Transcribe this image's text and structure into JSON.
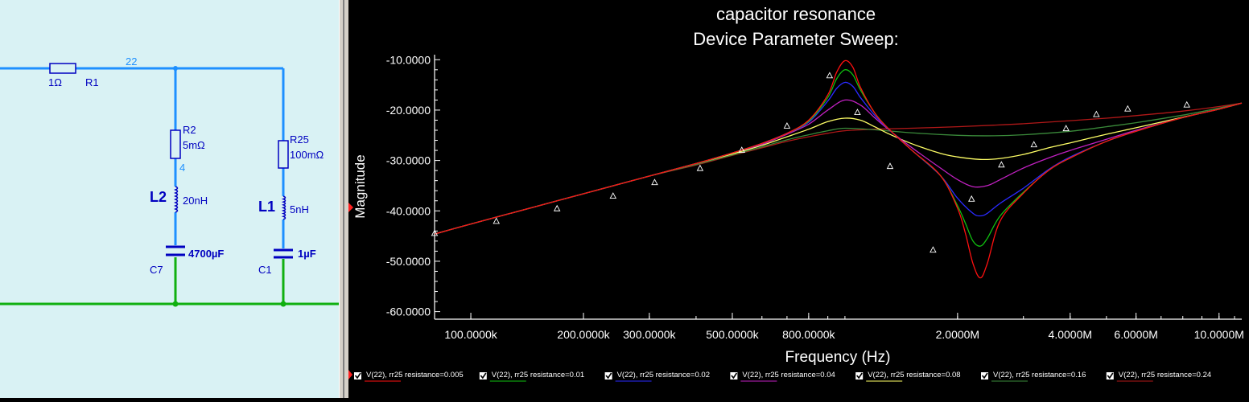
{
  "schematic": {
    "components": {
      "r1": {
        "value": "1Ω",
        "ref": "R1"
      },
      "r2": {
        "ref": "R2",
        "value": "5mΩ"
      },
      "r25": {
        "ref": "R25",
        "value": "100mΩ"
      },
      "l2": {
        "ref": "L2",
        "value": "20nH"
      },
      "l1": {
        "ref": "L1",
        "value": "5nH"
      },
      "c7": {
        "ref": "C7",
        "value": "4700µF"
      },
      "c1": {
        "ref": "C1",
        "value": "1µF"
      }
    },
    "nets": {
      "n22": "22",
      "n4": "4"
    },
    "colors": {
      "wire": "#1e90ff",
      "ground": "#10b010",
      "component": "#0000c0",
      "net_label": "#1e90ff",
      "background": "#d9f2f4"
    }
  },
  "chart_data": {
    "type": "line",
    "title": "capacitor resonance",
    "subtitle": "Device Parameter Sweep:",
    "xlabel": "Frequency (Hz)",
    "ylabel": "Magnitude",
    "x_scale": "log",
    "xlim": [
      80000,
      11500000
    ],
    "ylim": [
      -61.5,
      -9.0
    ],
    "x_ticks": [
      {
        "value": 100000,
        "label": "100.0000k"
      },
      {
        "value": 200000,
        "label": "200.0000k"
      },
      {
        "value": 300000,
        "label": "300.0000k"
      },
      {
        "value": 500000,
        "label": "500.0000k"
      },
      {
        "value": 800000,
        "label": "800.0000k"
      },
      {
        "value": 2000000,
        "label": "2.0000M"
      },
      {
        "value": 4000000,
        "label": "4.0000M"
      },
      {
        "value": 6000000,
        "label": "6.0000M"
      },
      {
        "value": 10000000,
        "label": "10.0000M"
      }
    ],
    "y_ticks": [
      {
        "value": -10,
        "label": "-10.0000"
      },
      {
        "value": -20,
        "label": "-20.0000"
      },
      {
        "value": -30,
        "label": "-30.0000"
      },
      {
        "value": -40,
        "label": "-40.0000"
      },
      {
        "value": -50,
        "label": "-50.0000"
      },
      {
        "value": -60,
        "label": "-60.0000"
      }
    ],
    "grid": false,
    "legend_position": "bottom",
    "background": "#000000",
    "axis_color": "#ffffff",
    "series": [
      {
        "name": "V(22), rr25 resistance=0.005",
        "color": "#ff1010",
        "x": [
          80000,
          100000,
          150000,
          200000,
          300000,
          400000,
          500000,
          600000,
          700000,
          800000,
          900000,
          950000,
          1000000,
          1050000,
          1100000,
          1200000,
          1300000,
          1500000,
          1800000,
          2000000,
          2100000,
          2200000,
          2300000,
          2400000,
          2600000,
          3000000,
          3500000,
          4000000,
          5000000,
          6000000,
          8000000,
          10000000,
          11500000
        ],
        "y": [
          -44.6,
          -42.6,
          -39.1,
          -36.6,
          -33.1,
          -30.6,
          -28.5,
          -26.6,
          -24.6,
          -22.0,
          -17.0,
          -12.5,
          -10.2,
          -11.5,
          -15.5,
          -20.5,
          -23.5,
          -27.8,
          -33.0,
          -39.5,
          -44.5,
          -50.5,
          -53.3,
          -50.5,
          -42.0,
          -36.5,
          -32.0,
          -29.5,
          -26.2,
          -24.2,
          -21.5,
          -19.8,
          -18.6
        ]
      },
      {
        "name": "V(22), rr25 resistance=0.01",
        "color": "#10c010",
        "x": [
          80000,
          100000,
          150000,
          200000,
          300000,
          400000,
          500000,
          600000,
          700000,
          800000,
          900000,
          950000,
          1000000,
          1050000,
          1100000,
          1200000,
          1300000,
          1500000,
          1800000,
          2000000,
          2100000,
          2200000,
          2300000,
          2400000,
          2600000,
          3000000,
          3500000,
          4000000,
          5000000,
          6000000,
          8000000,
          10000000,
          11500000
        ],
        "y": [
          -44.6,
          -42.6,
          -39.1,
          -36.6,
          -33.1,
          -30.6,
          -28.5,
          -26.6,
          -24.6,
          -22.2,
          -17.5,
          -13.8,
          -12.0,
          -13.0,
          -16.0,
          -20.5,
          -23.5,
          -27.8,
          -33.0,
          -39.0,
          -42.5,
          -46.0,
          -47.0,
          -45.5,
          -41.0,
          -36.3,
          -32.0,
          -29.5,
          -26.2,
          -24.2,
          -21.5,
          -19.8,
          -18.6
        ]
      },
      {
        "name": "V(22), rr25 resistance=0.02",
        "color": "#2a2aff",
        "x": [
          80000,
          100000,
          150000,
          200000,
          300000,
          400000,
          500000,
          600000,
          700000,
          800000,
          900000,
          950000,
          1000000,
          1050000,
          1100000,
          1200000,
          1300000,
          1500000,
          1800000,
          2000000,
          2200000,
          2300000,
          2400000,
          2600000,
          3000000,
          3500000,
          4000000,
          5000000,
          6000000,
          8000000,
          10000000,
          11500000
        ],
        "y": [
          -44.6,
          -42.6,
          -39.1,
          -36.6,
          -33.1,
          -30.6,
          -28.5,
          -26.6,
          -24.6,
          -22.4,
          -18.2,
          -15.7,
          -14.5,
          -15.3,
          -17.5,
          -21.0,
          -23.6,
          -27.8,
          -33.0,
          -37.5,
          -40.5,
          -41.0,
          -40.5,
          -38.5,
          -35.5,
          -31.8,
          -29.3,
          -26.2,
          -24.2,
          -21.5,
          -19.8,
          -18.6
        ]
      },
      {
        "name": "V(22), rr25 resistance=0.04",
        "color": "#c020c0",
        "x": [
          80000,
          100000,
          150000,
          200000,
          300000,
          400000,
          500000,
          600000,
          700000,
          800000,
          900000,
          1000000,
          1100000,
          1200000,
          1300000,
          1500000,
          1800000,
          2000000,
          2200000,
          2400000,
          2600000,
          3000000,
          3500000,
          4000000,
          5000000,
          6000000,
          8000000,
          10000000,
          11500000
        ],
        "y": [
          -44.6,
          -42.6,
          -39.1,
          -36.6,
          -33.1,
          -30.6,
          -28.5,
          -26.8,
          -24.8,
          -22.8,
          -20.0,
          -18.0,
          -19.0,
          -21.5,
          -23.7,
          -27.3,
          -31.5,
          -33.8,
          -35.2,
          -35.0,
          -33.8,
          -31.5,
          -29.5,
          -28.0,
          -25.8,
          -24.0,
          -21.5,
          -19.8,
          -18.6
        ]
      },
      {
        "name": "V(22), rr25 resistance=0.08",
        "color": "#ffff66",
        "x": [
          80000,
          100000,
          150000,
          200000,
          300000,
          400000,
          500000,
          600000,
          700000,
          800000,
          900000,
          1000000,
          1100000,
          1200000,
          1300000,
          1500000,
          1800000,
          2000000,
          2300000,
          2600000,
          3000000,
          3500000,
          4000000,
          5000000,
          6000000,
          8000000,
          10000000,
          11500000
        ],
        "y": [
          -44.6,
          -42.6,
          -39.1,
          -36.6,
          -33.1,
          -30.6,
          -28.7,
          -27.0,
          -25.3,
          -23.8,
          -22.3,
          -21.6,
          -22.0,
          -23.3,
          -24.6,
          -26.6,
          -28.6,
          -29.3,
          -29.8,
          -29.6,
          -28.8,
          -27.5,
          -26.5,
          -24.8,
          -23.5,
          -21.4,
          -19.8,
          -18.6
        ]
      },
      {
        "name": "V(22), rr25 resistance=0.16",
        "color": "#3a8a3a",
        "x": [
          80000,
          100000,
          150000,
          200000,
          300000,
          400000,
          500000,
          600000,
          700000,
          800000,
          900000,
          1000000,
          1200000,
          1500000,
          2000000,
          2500000,
          3000000,
          4000000,
          5000000,
          6000000,
          8000000,
          10000000,
          11500000
        ],
        "y": [
          -44.6,
          -42.6,
          -39.1,
          -36.6,
          -33.1,
          -30.8,
          -28.9,
          -27.3,
          -25.9,
          -24.9,
          -24.1,
          -23.6,
          -23.9,
          -24.5,
          -25.0,
          -25.1,
          -24.9,
          -24.2,
          -23.3,
          -22.5,
          -21.0,
          -19.6,
          -18.6
        ]
      },
      {
        "name": "V(22), rr25 resistance=0.24",
        "color": "#b01818",
        "x": [
          80000,
          100000,
          150000,
          200000,
          300000,
          400000,
          500000,
          600000,
          700000,
          800000,
          900000,
          1000000,
          1200000,
          1500000,
          2000000,
          2500000,
          3000000,
          4000000,
          5000000,
          6000000,
          8000000,
          10000000,
          11500000
        ],
        "y": [
          -44.6,
          -42.6,
          -39.1,
          -36.6,
          -33.1,
          -30.9,
          -29.0,
          -27.5,
          -26.2,
          -25.3,
          -24.6,
          -24.1,
          -23.8,
          -23.6,
          -23.3,
          -23.0,
          -22.7,
          -22.1,
          -21.6,
          -21.1,
          -20.2,
          -19.3,
          -18.6
        ]
      }
    ],
    "markers": {
      "symbol": "triangle",
      "x": [
        80000,
        117000,
        170000,
        240000,
        310000,
        410000,
        530000,
        700000,
        910000,
        1080000,
        1320000,
        1720000,
        2180000,
        2620000,
        3200000,
        3900000,
        4700000,
        5700000,
        8200000
      ],
      "y": [
        -44.5,
        -42.1,
        -39.6,
        -37.1,
        -34.4,
        -31.6,
        -28.0,
        -23.2,
        -13.2,
        -20.5,
        -31.2,
        -47.8,
        -37.7,
        -30.9,
        -26.9,
        -23.7,
        -20.9,
        -19.8,
        -19.0
      ]
    }
  }
}
